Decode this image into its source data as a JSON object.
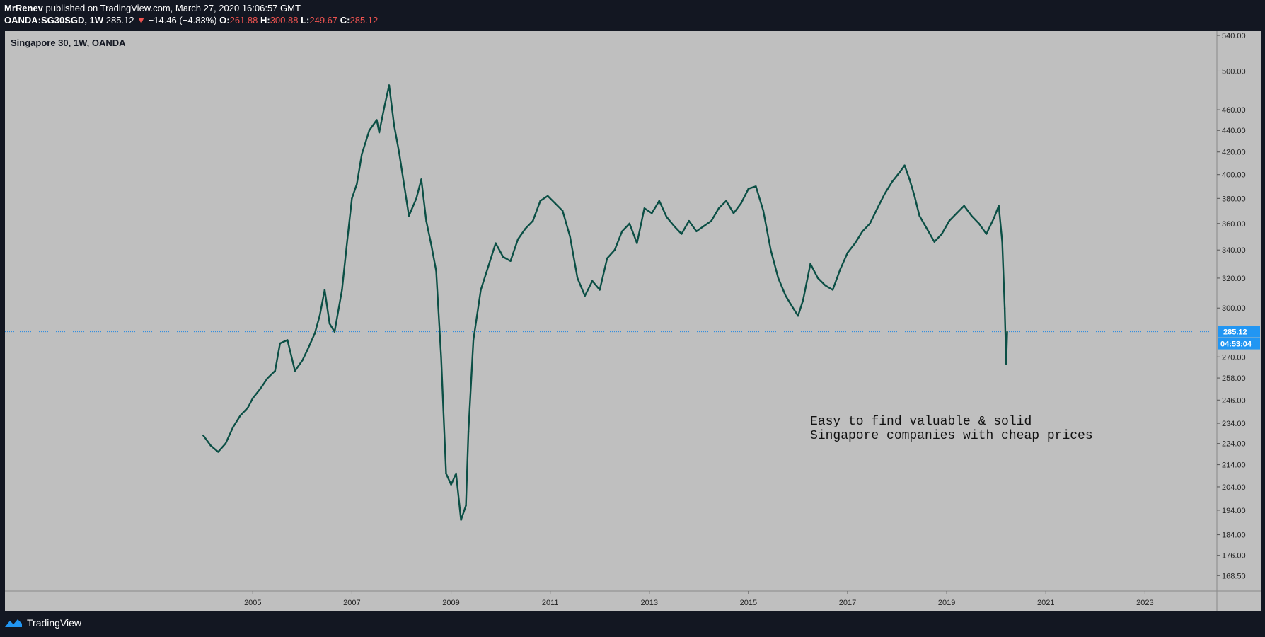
{
  "header": {
    "author": "MrRenev",
    "published_text": "published on TradingView.com, March 27, 2020 16:06:57 GMT",
    "symbol": "OANDA:SG30SGD, 1W",
    "last": "285.12",
    "change": "−14.46 (−4.83%)",
    "o_label": "O:",
    "o_value": "261.88",
    "h_label": "H:",
    "h_value": "300.88",
    "l_label": "L:",
    "l_value": "249.67",
    "c_label": "C:",
    "c_value": "285.12"
  },
  "footer": {
    "brand": "TradingView"
  },
  "colors": {
    "background": "#131722",
    "plot_bg": "#bfbfbf",
    "line": "#0b4f45",
    "price_tag": "#2196f3",
    "down": "#ef5350"
  },
  "chart_data": {
    "type": "line",
    "title": "Singapore 30, 1W, OANDA",
    "xlabel": "",
    "ylabel": "",
    "y_scale": "log",
    "ylim": [
      163,
      545
    ],
    "xlim": [
      2000.0,
      2024.45
    ],
    "x_ticks": [
      "2005",
      "2007",
      "2009",
      "2011",
      "2013",
      "2015",
      "2017",
      "2019",
      "2021",
      "2023"
    ],
    "y_ticks": [
      "540.00",
      "500.00",
      "460.00",
      "440.00",
      "420.00",
      "400.00",
      "380.00",
      "360.00",
      "340.00",
      "320.00",
      "300.00",
      "285.12",
      "270.00",
      "258.00",
      "246.00",
      "234.00",
      "224.00",
      "214.00",
      "204.00",
      "194.00",
      "184.00",
      "176.00",
      "168.50"
    ],
    "current_price": "285.12",
    "countdown": "04:53:04",
    "annotation": "Easy to find valuable & solid\nSingapore companies with cheap prices",
    "series": [
      {
        "x": [
          2004.0,
          2004.15,
          2004.3,
          2004.45,
          2004.6,
          2004.75,
          2004.9,
          2005.0,
          2005.15,
          2005.3,
          2005.45,
          2005.55,
          2005.7,
          2005.85,
          2006.0,
          2006.1,
          2006.25,
          2006.35,
          2006.45,
          2006.55,
          2006.65,
          2006.8,
          2006.9,
          2007.0,
          2007.1,
          2007.2,
          2007.35,
          2007.5,
          2007.55,
          2007.65,
          2007.75,
          2007.85,
          2007.95,
          2008.05,
          2008.15,
          2008.3,
          2008.4,
          2008.5,
          2008.6,
          2008.7,
          2008.8,
          2008.9,
          2009.0,
          2009.1,
          2009.2,
          2009.3,
          2009.35,
          2009.45,
          2009.6,
          2009.75,
          2009.9,
          2010.05,
          2010.2,
          2010.35,
          2010.5,
          2010.65,
          2010.8,
          2010.95,
          2011.1,
          2011.25,
          2011.4,
          2011.55,
          2011.7,
          2011.85,
          2012.0,
          2012.15,
          2012.3,
          2012.45,
          2012.6,
          2012.75,
          2012.9,
          2013.05,
          2013.2,
          2013.35,
          2013.5,
          2013.65,
          2013.8,
          2013.95,
          2014.1,
          2014.25,
          2014.4,
          2014.55,
          2014.7,
          2014.85,
          2015.0,
          2015.15,
          2015.3,
          2015.45,
          2015.6,
          2015.75,
          2015.9,
          2016.0,
          2016.1,
          2016.25,
          2016.4,
          2016.55,
          2016.7,
          2016.85,
          2017.0,
          2017.15,
          2017.3,
          2017.45,
          2017.6,
          2017.75,
          2017.9,
          2018.05,
          2018.15,
          2018.25,
          2018.35,
          2018.45,
          2018.6,
          2018.75,
          2018.9,
          2019.05,
          2019.2,
          2019.35,
          2019.5,
          2019.65,
          2019.8,
          2019.95,
          2020.05,
          2020.12,
          2020.17,
          2020.2,
          2020.22
        ],
        "y": [
          228,
          223,
          220,
          224,
          232,
          238,
          242,
          247,
          252,
          258,
          262,
          278,
          280,
          262,
          268,
          274,
          284,
          295,
          312,
          290,
          285,
          312,
          345,
          380,
          392,
          418,
          440,
          450,
          438,
          462,
          485,
          445,
          420,
          392,
          366,
          380,
          396,
          362,
          344,
          325,
          270,
          210,
          205,
          210,
          190,
          196,
          230,
          280,
          312,
          328,
          345,
          335,
          332,
          348,
          356,
          362,
          378,
          382,
          376,
          370,
          350,
          320,
          308,
          318,
          312,
          334,
          340,
          354,
          360,
          345,
          372,
          368,
          378,
          365,
          358,
          352,
          362,
          354,
          358,
          362,
          372,
          378,
          368,
          376,
          388,
          390,
          370,
          340,
          320,
          308,
          300,
          295,
          305,
          330,
          320,
          315,
          312,
          326,
          338,
          345,
          354,
          360,
          372,
          384,
          394,
          402,
          408,
          396,
          382,
          366,
          356,
          346,
          352,
          362,
          368,
          374,
          366,
          360,
          352,
          364,
          374,
          346,
          300,
          266,
          285
        ]
      }
    ]
  }
}
